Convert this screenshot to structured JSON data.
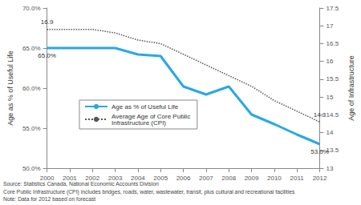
{
  "chart_data": {
    "type": "line",
    "categories": [
      "2000",
      "2001",
      "2002",
      "2003",
      "2004",
      "2005",
      "2006",
      "2007",
      "2008",
      "2009",
      "2010",
      "2011",
      "2012"
    ],
    "ylabel": "Age as % of Useful Life",
    "y2label": "Age of Infrastructure",
    "ylim": [
      50,
      70
    ],
    "yticks": [
      {
        "value": 50,
        "label": "50.0%"
      },
      {
        "value": 55,
        "label": "55.0%"
      },
      {
        "value": 60,
        "label": "60.0%"
      },
      {
        "value": 65,
        "label": "65.0%"
      },
      {
        "value": 70,
        "label": "70.0%"
      }
    ],
    "y2lim": [
      13,
      17.5
    ],
    "y2ticks": [
      13,
      13.5,
      14,
      14.5,
      15,
      15.5,
      16,
      16.5,
      17,
      17.5
    ],
    "grid": false,
    "legend": "left",
    "data_labels": true,
    "series": [
      {
        "name": "Age as % of Useful Life",
        "color": "#29a9e1",
        "type": "line",
        "axis": "y",
        "line_style": "solid",
        "marker": "none",
        "values": [
          65.0,
          65.0,
          65.0,
          65.0,
          64.2,
          64.0,
          60.2,
          59.2,
          60.2,
          56.7,
          55.5,
          54.2,
          53.0
        ],
        "value_labels": [
          "65.0%",
          null,
          null,
          null,
          null,
          null,
          null,
          null,
          null,
          null,
          null,
          null,
          "53.0%"
        ]
      },
      {
        "name": "Average Age of Core Public Infrastructure (CPI)",
        "color": "#555555",
        "type": "line",
        "axis": "y2",
        "line_style": "dotted",
        "marker": "none",
        "values": [
          16.9,
          16.9,
          16.9,
          16.8,
          16.6,
          16.5,
          16.2,
          15.9,
          15.6,
          15.3,
          14.9,
          14.6,
          14.3
        ],
        "value_labels": [
          "16.9",
          null,
          null,
          null,
          null,
          null,
          null,
          null,
          null,
          null,
          null,
          null,
          "14.3"
        ]
      }
    ],
    "annotations": [
      "Source: Statistics Canada, National Economic Accounts Division",
      "Core Public Infrastructure (CPI) includes bridges, roads, water, wastewater, transit, plus cultural and recreational facilities",
      "Note: Data for 2012 based on forecast"
    ]
  }
}
